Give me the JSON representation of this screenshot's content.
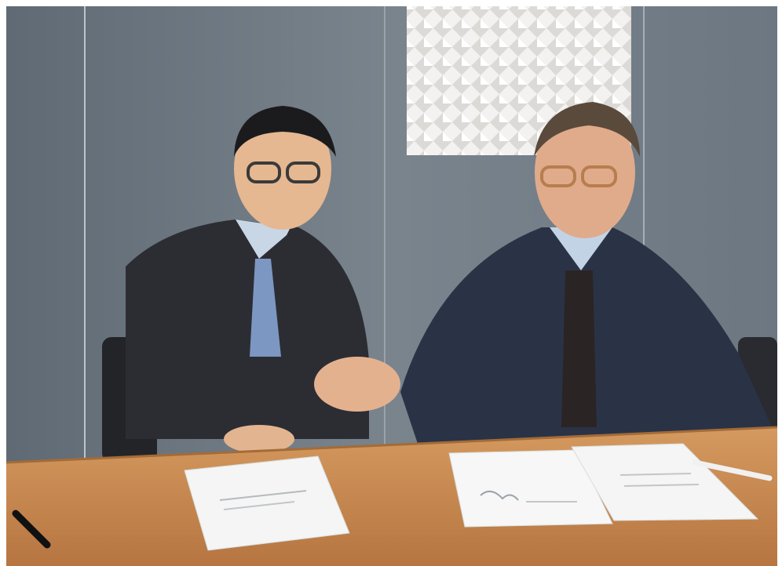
{
  "scene": {
    "description_kind": "photograph",
    "colors": {
      "wall": "#6f7a84",
      "wall_light": "#8a949d",
      "table": "#c98a4f",
      "table_edge": "#a46b38",
      "suit_left": "#2c2d33",
      "suit_right": "#2a3346",
      "shirt": "#c9d6e6",
      "paper": "#f4f5f4",
      "art_panel": "#f1f0ee"
    }
  }
}
